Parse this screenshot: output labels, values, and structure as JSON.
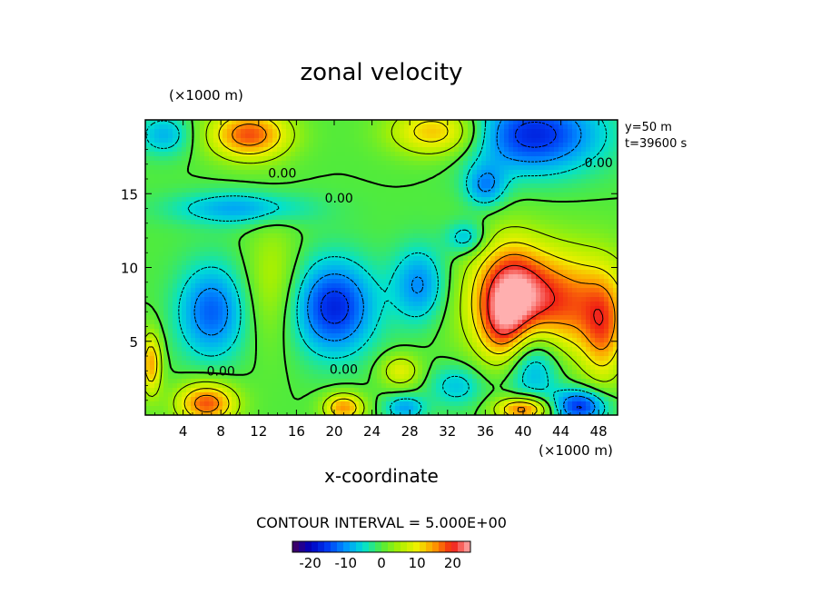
{
  "chart_data": {
    "type": "heatmap",
    "title": "zonal velocity",
    "xlabel": "x-coordinate",
    "x_unit_label": "(×1000 m)",
    "y_unit_label": "(×1000 m)",
    "xlim": [
      0,
      50
    ],
    "ylim": [
      0,
      20
    ],
    "x_ticks": [
      "4",
      "8",
      "12",
      "16",
      "20",
      "24",
      "28",
      "32",
      "36",
      "40",
      "44",
      "48"
    ],
    "x_tick_values": [
      4,
      8,
      12,
      16,
      20,
      24,
      28,
      32,
      36,
      40,
      44,
      48
    ],
    "y_ticks": [
      "5",
      "10",
      "15"
    ],
    "y_tick_values": [
      5,
      10,
      15
    ],
    "info_lines": [
      "y=50 m",
      "t=39600 s"
    ],
    "contour_interval_text": "CONTOUR INTERVAL = 5.000E+00",
    "contour_label_text": "0.00",
    "contour_labels": [
      {
        "x": 14.5,
        "y": 16.4
      },
      {
        "x": 20.5,
        "y": 14.7
      },
      {
        "x": 8.0,
        "y": 3.0
      },
      {
        "x": 21.0,
        "y": 3.1
      },
      {
        "x": 48.0,
        "y": 17.1
      }
    ],
    "colorbar": {
      "min": -25,
      "max": 25,
      "ticks": [
        "-20",
        "-10",
        "0",
        "10",
        "20"
      ],
      "tick_values": [
        -20,
        -10,
        0,
        10,
        20
      ]
    },
    "features": [
      {
        "kind": "max",
        "x": 43,
        "y": 7.5,
        "value": 19,
        "sx": 5.5,
        "sy": 2.6
      },
      {
        "kind": "max",
        "x": 38.5,
        "y": 8.5,
        "value": 14,
        "sx": 2.5,
        "sy": 2.5
      },
      {
        "kind": "max",
        "x": 38,
        "y": 5.5,
        "value": 8,
        "sx": 1.8,
        "sy": 1.8
      },
      {
        "kind": "max",
        "x": 11,
        "y": 19.0,
        "value": 18,
        "sx": 3.0,
        "sy": 1.2
      },
      {
        "kind": "max",
        "x": 31,
        "y": 19.2,
        "value": 14,
        "sx": 3.5,
        "sy": 1.2
      },
      {
        "kind": "max",
        "x": 6.5,
        "y": 0.8,
        "value": 18,
        "sx": 2.2,
        "sy": 1.0
      },
      {
        "kind": "max",
        "x": 21,
        "y": 0.5,
        "value": 15,
        "sx": 1.5,
        "sy": 0.7
      },
      {
        "kind": "max",
        "x": 40,
        "y": 0.4,
        "value": 18,
        "sx": 2.0,
        "sy": 0.6
      },
      {
        "kind": "max",
        "x": 0.6,
        "y": 3.5,
        "value": 14,
        "sx": 0.8,
        "sy": 1.5
      },
      {
        "kind": "max",
        "x": 48.5,
        "y": 5.5,
        "value": 10,
        "sx": 1.5,
        "sy": 2.5
      },
      {
        "kind": "max",
        "x": 27,
        "y": 3.0,
        "value": 9,
        "sx": 1.5,
        "sy": 0.8
      },
      {
        "kind": "max",
        "x": 13.5,
        "y": 9.0,
        "value": 6,
        "sx": 2.0,
        "sy": 3.0
      },
      {
        "kind": "min",
        "x": 20,
        "y": 7.3,
        "value": -17,
        "sx": 3.0,
        "sy": 2.2
      },
      {
        "kind": "min",
        "x": 7,
        "y": 7.0,
        "value": -13,
        "sx": 2.5,
        "sy": 2.2
      },
      {
        "kind": "min",
        "x": 29,
        "y": 8.8,
        "value": -11,
        "sx": 2.0,
        "sy": 1.8
      },
      {
        "kind": "min",
        "x": 41,
        "y": 3.8,
        "value": -13,
        "sx": 2.2,
        "sy": 2.0
      },
      {
        "kind": "min",
        "x": 41,
        "y": 19.0,
        "value": -17,
        "sx": 5.0,
        "sy": 1.8
      },
      {
        "kind": "min",
        "x": 46,
        "y": 0.6,
        "value": -16,
        "sx": 2.0,
        "sy": 0.8
      },
      {
        "kind": "min",
        "x": 10,
        "y": 14.0,
        "value": -9,
        "sx": 5.0,
        "sy": 0.8
      },
      {
        "kind": "min",
        "x": 36,
        "y": 15.5,
        "value": -10,
        "sx": 1.5,
        "sy": 1.0
      },
      {
        "kind": "min",
        "x": 2.0,
        "y": 19.0,
        "value": -8,
        "sx": 2.0,
        "sy": 1.0
      },
      {
        "kind": "min",
        "x": 27.5,
        "y": 0.5,
        "value": -9,
        "sx": 1.5,
        "sy": 0.6
      },
      {
        "kind": "min",
        "x": 34,
        "y": 12.0,
        "value": -8,
        "sx": 1.5,
        "sy": 0.8
      },
      {
        "kind": "min",
        "x": 33,
        "y": 2.0,
        "value": -7,
        "sx": 2.0,
        "sy": 1.0
      }
    ]
  }
}
